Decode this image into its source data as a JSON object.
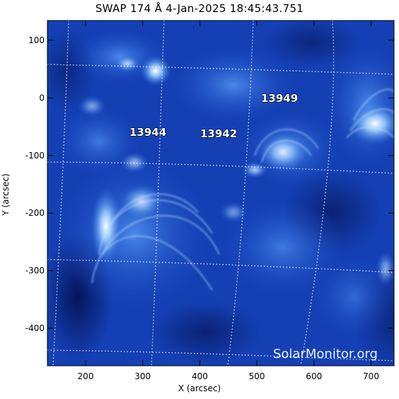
{
  "title": "SWAP 174 Å   4-Jan-2025 18:45:43.751",
  "xlabel": "X (arcsec)",
  "ylabel": "Y (arcsec)",
  "x_ticks": [
    "200",
    "300",
    "400",
    "500",
    "600",
    "700"
  ],
  "y_ticks": [
    "100",
    "0",
    "-100",
    "-200",
    "-300",
    "-400"
  ],
  "regions": [
    "13949",
    "13944",
    "13942"
  ],
  "watermark": "SolarMonitor.org",
  "colors": {
    "deep": "#06155a",
    "mid": "#1046c8",
    "bright": "#6fb0ff",
    "hot": "#ffffff"
  }
}
